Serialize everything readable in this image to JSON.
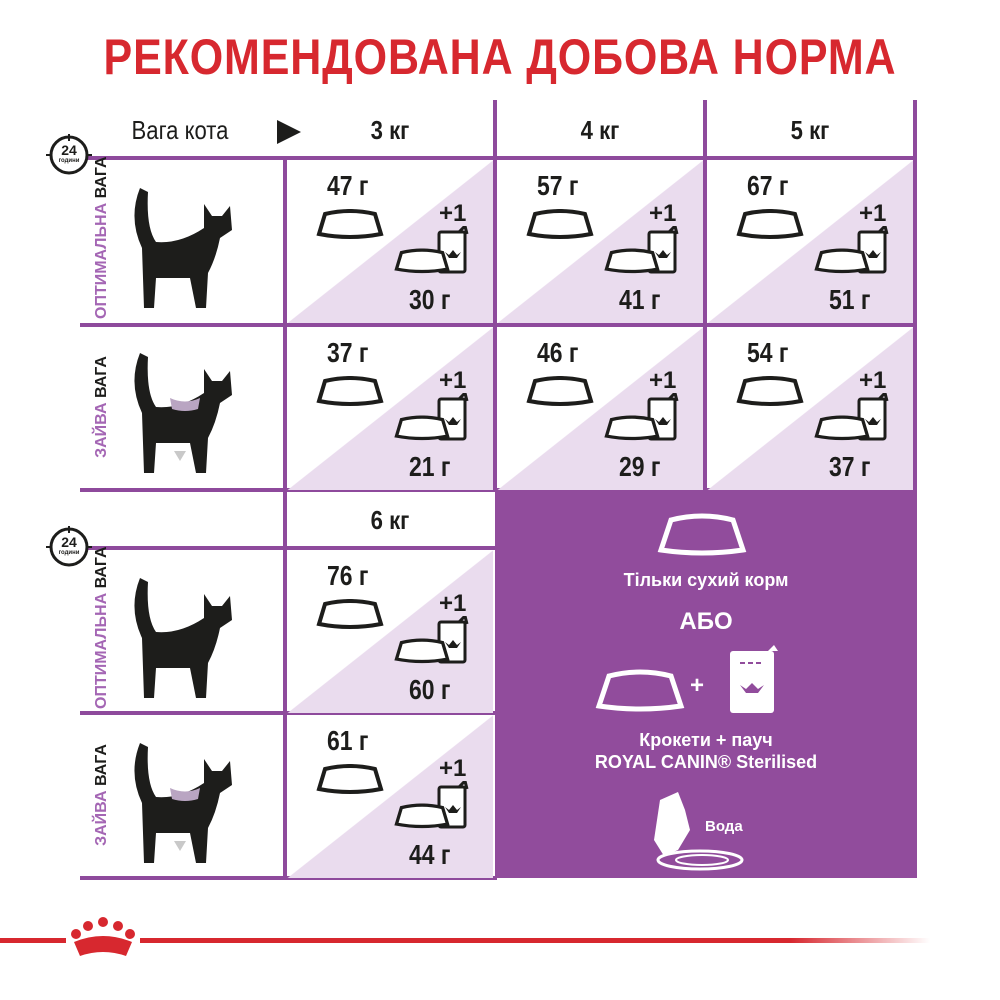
{
  "title": "РЕКОМЕНДОВАНА ДОБОВА НОРМА",
  "header": {
    "weight_label": "Вага кота",
    "weights_top": [
      "3 кг",
      "4 кг",
      "5 кг"
    ],
    "weights_bottom": [
      "6 кг"
    ]
  },
  "clock": {
    "number": "24",
    "label": "години"
  },
  "rows": {
    "optimal": {
      "part1": "ОПТИМАЛЬНА",
      "part2": "ВАГА"
    },
    "overweight": {
      "part1": "ЗАЙВА",
      "part2": "ВАГА"
    }
  },
  "pouch_label": "+1",
  "cells": {
    "optimal_3": {
      "dry": "47 г",
      "mixed": "30 г"
    },
    "optimal_4": {
      "dry": "57 г",
      "mixed": "41 г"
    },
    "optimal_5": {
      "dry": "67 г",
      "mixed": "51 г"
    },
    "over_3": {
      "dry": "37 г",
      "mixed": "21 г"
    },
    "over_4": {
      "dry": "46 г",
      "mixed": "29 г"
    },
    "over_5": {
      "dry": "54 г",
      "mixed": "37 г"
    },
    "optimal_6": {
      "dry": "76 г",
      "mixed": "60 г"
    },
    "over_6": {
      "dry": "61 г",
      "mixed": "44 г"
    }
  },
  "legend": {
    "dry_only": "Тільки сухий корм",
    "or": "АБО",
    "mixed_line1": "Крокети + пауч",
    "mixed_line2": "ROYAL CANIN® Sterilised",
    "plus": "+",
    "water": "Вода"
  },
  "colors": {
    "accent": "#d7282f",
    "purple": "#914c9c",
    "light_purple": "#eadcee"
  }
}
